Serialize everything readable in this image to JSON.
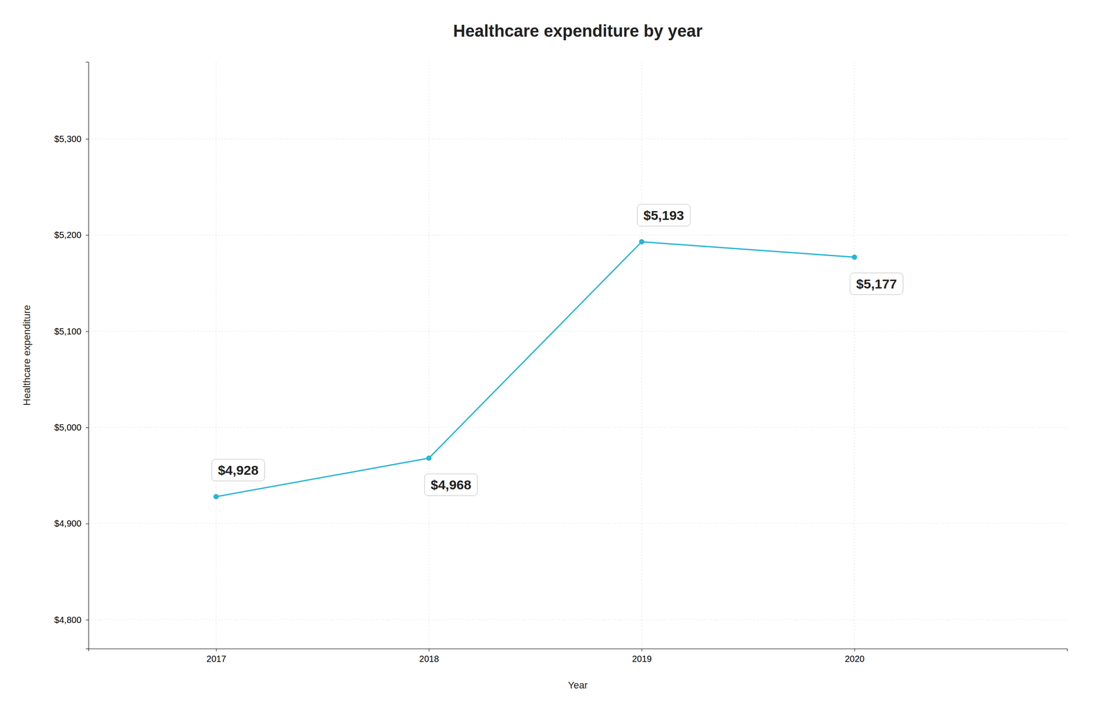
{
  "chart_data": {
    "type": "line",
    "title": "Healthcare expenditure by year",
    "xlabel": "Year",
    "ylabel": "Healthcare expenditure",
    "x": [
      2017,
      2018,
      2019,
      2020
    ],
    "values": [
      4928,
      4968,
      5193,
      5177
    ],
    "value_labels": [
      "$4,928",
      "$4,968",
      "$5,193",
      "$5,177"
    ],
    "data_labels": true,
    "color": "#29b6d4",
    "marker": "circle",
    "xlim": [
      2016.4,
      2021.0
    ],
    "xticks": [
      2017,
      2018,
      2019,
      2020
    ],
    "ylim": [
      4770,
      5380
    ],
    "yticks": [
      {
        "value": 4800,
        "label": "$4,800"
      },
      {
        "value": 4900,
        "label": "$4,900"
      },
      {
        "value": 5000,
        "label": "$5,000"
      },
      {
        "value": 5100,
        "label": "$5,100"
      },
      {
        "value": 5200,
        "label": "$5,200"
      },
      {
        "value": 5300,
        "label": "$5,300"
      }
    ],
    "grid": true
  }
}
